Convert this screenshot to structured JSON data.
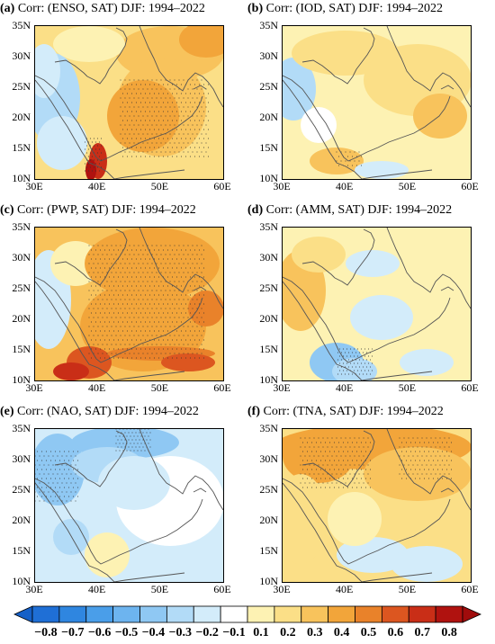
{
  "panels": [
    {
      "id": "a",
      "letter": "(a)",
      "title": "Corr: (ENSO, SAT) DJF: 1994–2022",
      "style": "enso"
    },
    {
      "id": "b",
      "letter": "(b)",
      "title": "Corr: (IOD, SAT) DJF: 1994–2022",
      "style": "iod"
    },
    {
      "id": "c",
      "letter": "(c)",
      "title": "Corr: (PWP, SAT) DJF: 1994–2022",
      "style": "pwp"
    },
    {
      "id": "d",
      "letter": "(d)",
      "title": "Corr: (AMM, SAT) DJF: 1994–2022",
      "style": "amm"
    },
    {
      "id": "e",
      "letter": "(e)",
      "title": "Corr: (NAO, SAT) DJF: 1994–2022",
      "style": "nao"
    },
    {
      "id": "f",
      "letter": "(f)",
      "title": "Corr: (TNA, SAT) DJF: 1994–2022",
      "style": "tna"
    }
  ],
  "axes": {
    "y_ticks": [
      "35N",
      "30N",
      "25N",
      "20N",
      "15N",
      "10N"
    ],
    "x_ticks": [
      "30E",
      "40E",
      "50E",
      "60E"
    ]
  },
  "colorbar": {
    "ticks": [
      "−0.8",
      "−0.7",
      "−0.6",
      "−0.5",
      "−0.4",
      "−0.3",
      "−0.2",
      "−0.1",
      "0.1",
      "0.2",
      "0.3",
      "0.4",
      "0.5",
      "0.6",
      "0.7",
      "0.8"
    ],
    "colors": [
      "#1f6fd6",
      "#2f86e0",
      "#4a9ee9",
      "#6db4ef",
      "#8fc8f3",
      "#b2dbf7",
      "#d3ecfa",
      "#ffffff",
      "#fdf2b3",
      "#fbdf87",
      "#f8c35c",
      "#f2a53a",
      "#e9822a",
      "#dc5620",
      "#c92e17",
      "#b0120f"
    ],
    "left_arrow": "#1560c8",
    "right_arrow": "#a00c0c"
  }
}
